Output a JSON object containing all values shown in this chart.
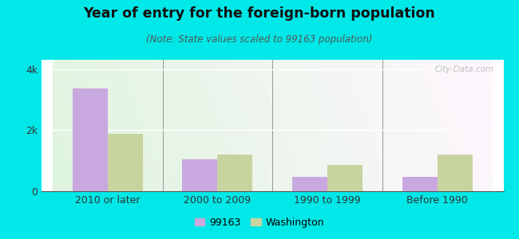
{
  "title": "Year of entry for the foreign-born population",
  "subtitle": "(Note: State values scaled to 99163 population)",
  "categories": [
    "2010 or later",
    "2000 to 2009",
    "1990 to 1999",
    "Before 1990"
  ],
  "values_local": [
    3350,
    1050,
    480,
    480
  ],
  "values_state": [
    1870,
    1200,
    850,
    1200
  ],
  "color_local": "#c9a8e0",
  "color_state": "#c8d4a0",
  "legend_local": "99163",
  "legend_state": "Washington",
  "ylim": [
    0,
    4300
  ],
  "yticks": [
    0,
    2000,
    4000
  ],
  "ytick_labels": [
    "0",
    "2k",
    "4k"
  ],
  "bar_width": 0.32,
  "outer_background": "#00e8e8",
  "grid_color": "#ffffff",
  "watermark": "City-Data.com"
}
